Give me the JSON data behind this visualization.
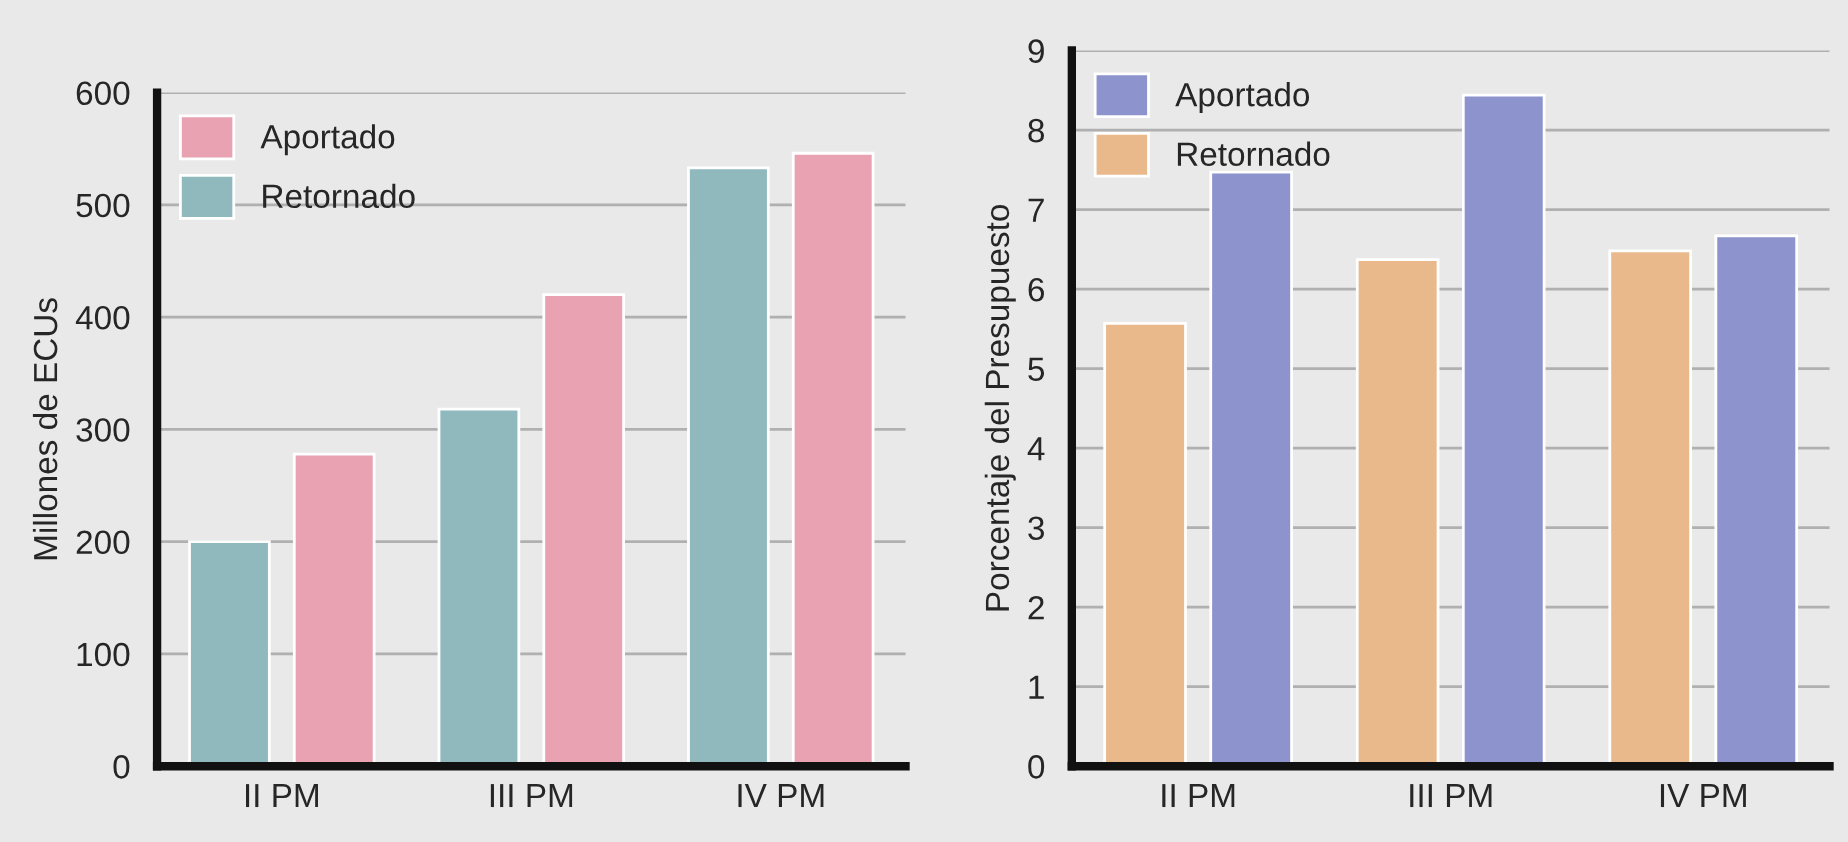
{
  "chart_data": [
    {
      "type": "bar",
      "ylabel": "Millones de ECUs",
      "categories": [
        "II PM",
        "III PM",
        "IV PM"
      ],
      "series": [
        {
          "name": "Retornado",
          "color": "#8fb9bd",
          "values": [
            200,
            318,
            533
          ]
        },
        {
          "name": "Aportado",
          "color": "#e8a2b2",
          "values": [
            278,
            420,
            546
          ]
        }
      ],
      "ylim": [
        0,
        600
      ],
      "yticks": [
        0,
        100,
        200,
        300,
        400,
        500,
        600
      ],
      "grid": "y",
      "legend": "top left"
    },
    {
      "type": "bar",
      "ylabel": "Porcentaje del Presupuesto",
      "categories": [
        "II PM",
        "III PM",
        "IV PM"
      ],
      "series": [
        {
          "name": "Retornado",
          "color": "#e9b98c",
          "values": [
            5.57,
            6.37,
            6.48
          ]
        },
        {
          "name": "Aportado",
          "color": "#8d93cc",
          "values": [
            7.47,
            8.44,
            6.67
          ]
        }
      ],
      "ylim": [
        0,
        9
      ],
      "yticks": [
        0,
        1,
        2,
        3,
        4,
        5,
        6,
        7,
        8,
        9
      ],
      "grid": "y",
      "legend": "top left"
    }
  ]
}
